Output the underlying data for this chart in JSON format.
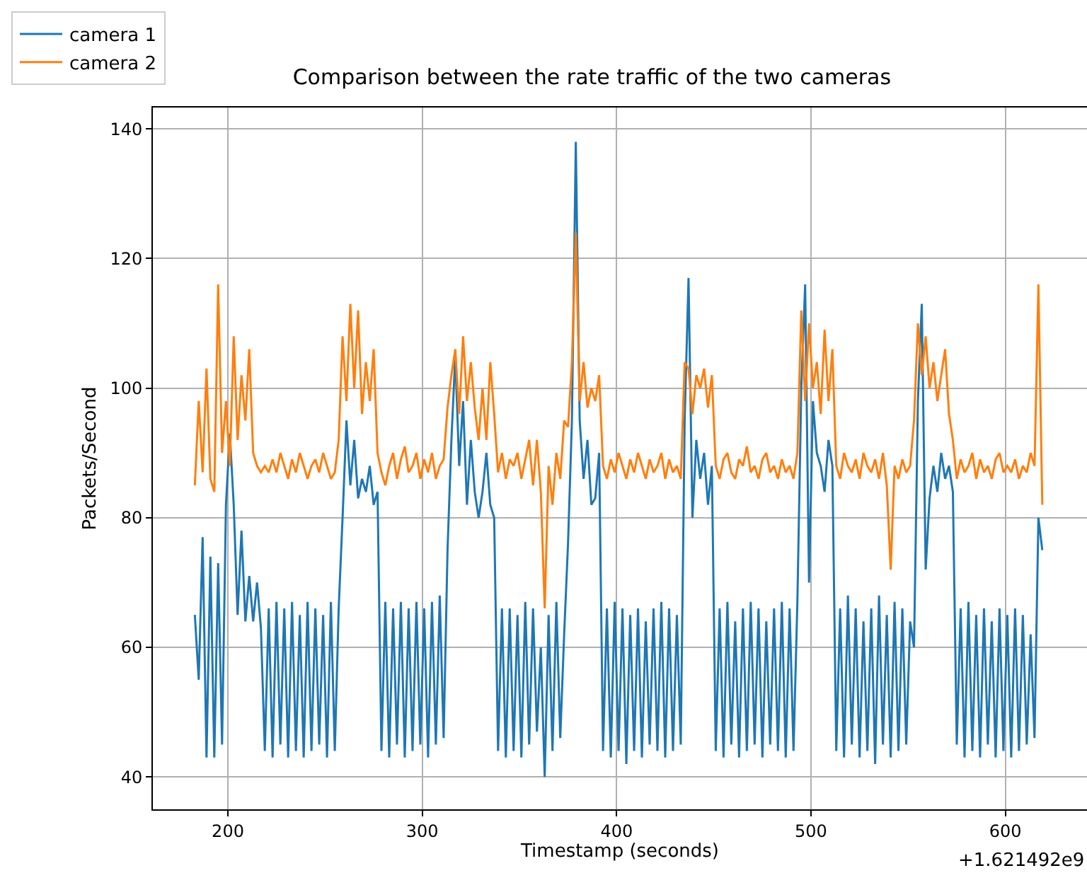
{
  "chart_data": {
    "type": "line",
    "title": "Comparison between the rate traffic of the two cameras",
    "xlabel": "Timestamp (seconds)",
    "ylabel": "Packets/Second",
    "annotations": [
      "+1.621492e9"
    ],
    "x": [
      183,
      185,
      187,
      189,
      191,
      193,
      195,
      197,
      199,
      201,
      203,
      205,
      207,
      209,
      211,
      213,
      215,
      217,
      219,
      221,
      223,
      225,
      227,
      229,
      231,
      233,
      235,
      237,
      239,
      241,
      243,
      245,
      247,
      249,
      251,
      253,
      255,
      257,
      259,
      261,
      263,
      265,
      267,
      269,
      271,
      273,
      275,
      277,
      279,
      281,
      283,
      285,
      287,
      289,
      291,
      293,
      295,
      297,
      299,
      301,
      303,
      305,
      307,
      309,
      311,
      313,
      315,
      317,
      319,
      321,
      323,
      325,
      327,
      329,
      331,
      333,
      335,
      337,
      339,
      341,
      343,
      345,
      347,
      349,
      351,
      353,
      355,
      357,
      359,
      361,
      363,
      365,
      367,
      369,
      371,
      373,
      375,
      377,
      379,
      381,
      383,
      385,
      387,
      389,
      391,
      393,
      395,
      397,
      399,
      401,
      403,
      405,
      407,
      409,
      411,
      413,
      415,
      417,
      419,
      421,
      423,
      425,
      427,
      429,
      431,
      433,
      435,
      437,
      439,
      441,
      443,
      445,
      447,
      449,
      451,
      453,
      455,
      457,
      459,
      461,
      463,
      465,
      467,
      469,
      471,
      473,
      475,
      477,
      479,
      481,
      483,
      485,
      487,
      489,
      491,
      493,
      495,
      497,
      499,
      501,
      503,
      505,
      507,
      509,
      511,
      513,
      515,
      517,
      519,
      521,
      523,
      525,
      527,
      529,
      531,
      533,
      535,
      537,
      539,
      541,
      543,
      545,
      547,
      549,
      551,
      553,
      555,
      557,
      559,
      561,
      563,
      565,
      567,
      569,
      571,
      573,
      575,
      577,
      579,
      581,
      583,
      585,
      587,
      589,
      591,
      593,
      595,
      597,
      599,
      601,
      603,
      605,
      607,
      609,
      611,
      613,
      615,
      617,
      619
    ],
    "series": [
      {
        "name": "camera 1",
        "color": "#1f77b4",
        "values": [
          65,
          55,
          77,
          43,
          74,
          43,
          73,
          45,
          82,
          93,
          82,
          65,
          78,
          64,
          71,
          64,
          70,
          63,
          44,
          66,
          43,
          67,
          45,
          66,
          43,
          67,
          44,
          65,
          43,
          67,
          44,
          66,
          45,
          65,
          43,
          67,
          44,
          66,
          80,
          95,
          85,
          92,
          83,
          86,
          84,
          88,
          82,
          84,
          44,
          67,
          43,
          66,
          45,
          67,
          43,
          66,
          44,
          67,
          45,
          66,
          43,
          67,
          45,
          68,
          46,
          75,
          92,
          105,
          88,
          98,
          82,
          92,
          84,
          80,
          84,
          90,
          82,
          80,
          44,
          66,
          43,
          66,
          44,
          65,
          43,
          67,
          45,
          66,
          47,
          60,
          40,
          65,
          44,
          67,
          46,
          62,
          76,
          95,
          138,
          95,
          86,
          92,
          82,
          83,
          90,
          44,
          66,
          43,
          67,
          44,
          66,
          42,
          65,
          44,
          66,
          43,
          64,
          45,
          66,
          44,
          67,
          43,
          66,
          44,
          65,
          45,
          95,
          117,
          80,
          92,
          86,
          90,
          82,
          88,
          44,
          66,
          43,
          67,
          45,
          64,
          43,
          66,
          44,
          67,
          45,
          66,
          43,
          64,
          45,
          66,
          44,
          67,
          43,
          66,
          44,
          67,
          100,
          116,
          70,
          98,
          90,
          88,
          84,
          92,
          88,
          44,
          66,
          43,
          68,
          45,
          66,
          43,
          64,
          44,
          66,
          42,
          68,
          45,
          65,
          43,
          67,
          44,
          66,
          45,
          64,
          60,
          98,
          113,
          72,
          83,
          88,
          84,
          90,
          86,
          88,
          84,
          45,
          66,
          43,
          67,
          44,
          65,
          43,
          66,
          45,
          64,
          43,
          66,
          44,
          65,
          43,
          66,
          44,
          65,
          45,
          62,
          46,
          80,
          75
        ]
      },
      {
        "name": "camera 2",
        "color": "#ff7f0e",
        "values": [
          85,
          98,
          87,
          103,
          86,
          84,
          116,
          90,
          98,
          88,
          108,
          92,
          102,
          95,
          106,
          90,
          88,
          87,
          88,
          87,
          89,
          87,
          90,
          88,
          86,
          89,
          87,
          90,
          88,
          86,
          88,
          89,
          87,
          90,
          88,
          86,
          87,
          92,
          108,
          98,
          113,
          100,
          112,
          96,
          104,
          98,
          106,
          90,
          87,
          85,
          88,
          90,
          86,
          89,
          91,
          87,
          88,
          90,
          86,
          89,
          87,
          90,
          86,
          88,
          89,
          97,
          102,
          106,
          96,
          108,
          98,
          104,
          97,
          92,
          100,
          92,
          104,
          96,
          87,
          90,
          86,
          89,
          88,
          90,
          86,
          89,
          92,
          85,
          92,
          84,
          66,
          88,
          82,
          90,
          86,
          95,
          94,
          104,
          124,
          98,
          104,
          97,
          100,
          98,
          102,
          88,
          86,
          89,
          87,
          90,
          88,
          86,
          89,
          87,
          90,
          88,
          86,
          89,
          87,
          88,
          90,
          86,
          89,
          87,
          88,
          86,
          104,
          103,
          96,
          102,
          100,
          103,
          97,
          102,
          88,
          86,
          89,
          90,
          87,
          86,
          89,
          88,
          91,
          87,
          88,
          86,
          89,
          90,
          87,
          88,
          86,
          89,
          87,
          88,
          86,
          90,
          112,
          98,
          110,
          100,
          104,
          96,
          109,
          98,
          106,
          88,
          86,
          90,
          88,
          87,
          89,
          86,
          90,
          88,
          87,
          89,
          86,
          90,
          85,
          72,
          88,
          86,
          89,
          87,
          88,
          95,
          110,
          102,
          108,
          100,
          104,
          98,
          102,
          106,
          96,
          92,
          86,
          89,
          87,
          88,
          90,
          86,
          89,
          87,
          88,
          86,
          89,
          90,
          87,
          88,
          87,
          89,
          86,
          88,
          87,
          90,
          88,
          116,
          82
        ]
      }
    ],
    "xlim": [
      161.4,
      642
    ],
    "ylim": [
      35,
      143.3
    ],
    "xticks": [
      200,
      300,
      400,
      500,
      600
    ],
    "yticks": [
      40,
      60,
      80,
      100,
      120,
      140
    ],
    "grid": true,
    "legend": "top left",
    "line_style": "solid",
    "marker": "none"
  }
}
